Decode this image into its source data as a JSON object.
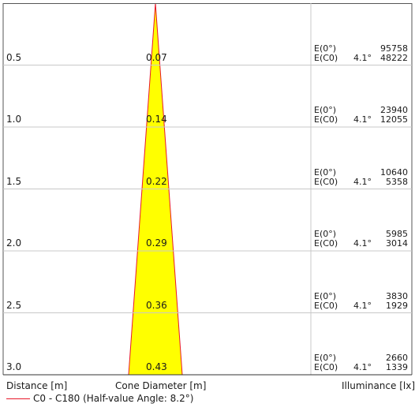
{
  "chart_data": {
    "type": "cone",
    "x_axis_label": "Distance [m]",
    "middle_axis_label": "Cone Diameter [m]",
    "right_axis_label": "Illuminance [lx]",
    "legend": {
      "label": "C0 - C180 (Half-value Angle: 8.2°)",
      "color": "#e8182a"
    },
    "cone_fill_color": "#ffff00",
    "cone_edge_color": "#e8182a",
    "grid_color": "#c8c8c8",
    "rows": [
      {
        "distance": "0.5",
        "diameter": "0.07",
        "e0_label": "E(0°)",
        "ec0_label": "E(C0)",
        "angle": "4.1°",
        "e0": "95758",
        "ec0": "48222"
      },
      {
        "distance": "1.0",
        "diameter": "0.14",
        "e0_label": "E(0°)",
        "ec0_label": "E(C0)",
        "angle": "4.1°",
        "e0": "23940",
        "ec0": "12055"
      },
      {
        "distance": "1.5",
        "diameter": "0.22",
        "e0_label": "E(0°)",
        "ec0_label": "E(C0)",
        "angle": "4.1°",
        "e0": "10640",
        "ec0": "5358"
      },
      {
        "distance": "2.0",
        "diameter": "0.29",
        "e0_label": "E(0°)",
        "ec0_label": "E(C0)",
        "angle": "4.1°",
        "e0": "5985",
        "ec0": "3014"
      },
      {
        "distance": "2.5",
        "diameter": "0.36",
        "e0_label": "E(0°)",
        "ec0_label": "E(C0)",
        "angle": "4.1°",
        "e0": "3830",
        "ec0": "1929"
      },
      {
        "distance": "3.0",
        "diameter": "0.43",
        "e0_label": "E(0°)",
        "ec0_label": "E(C0)",
        "angle": "4.1°",
        "e0": "2660",
        "ec0": "1339"
      }
    ]
  }
}
